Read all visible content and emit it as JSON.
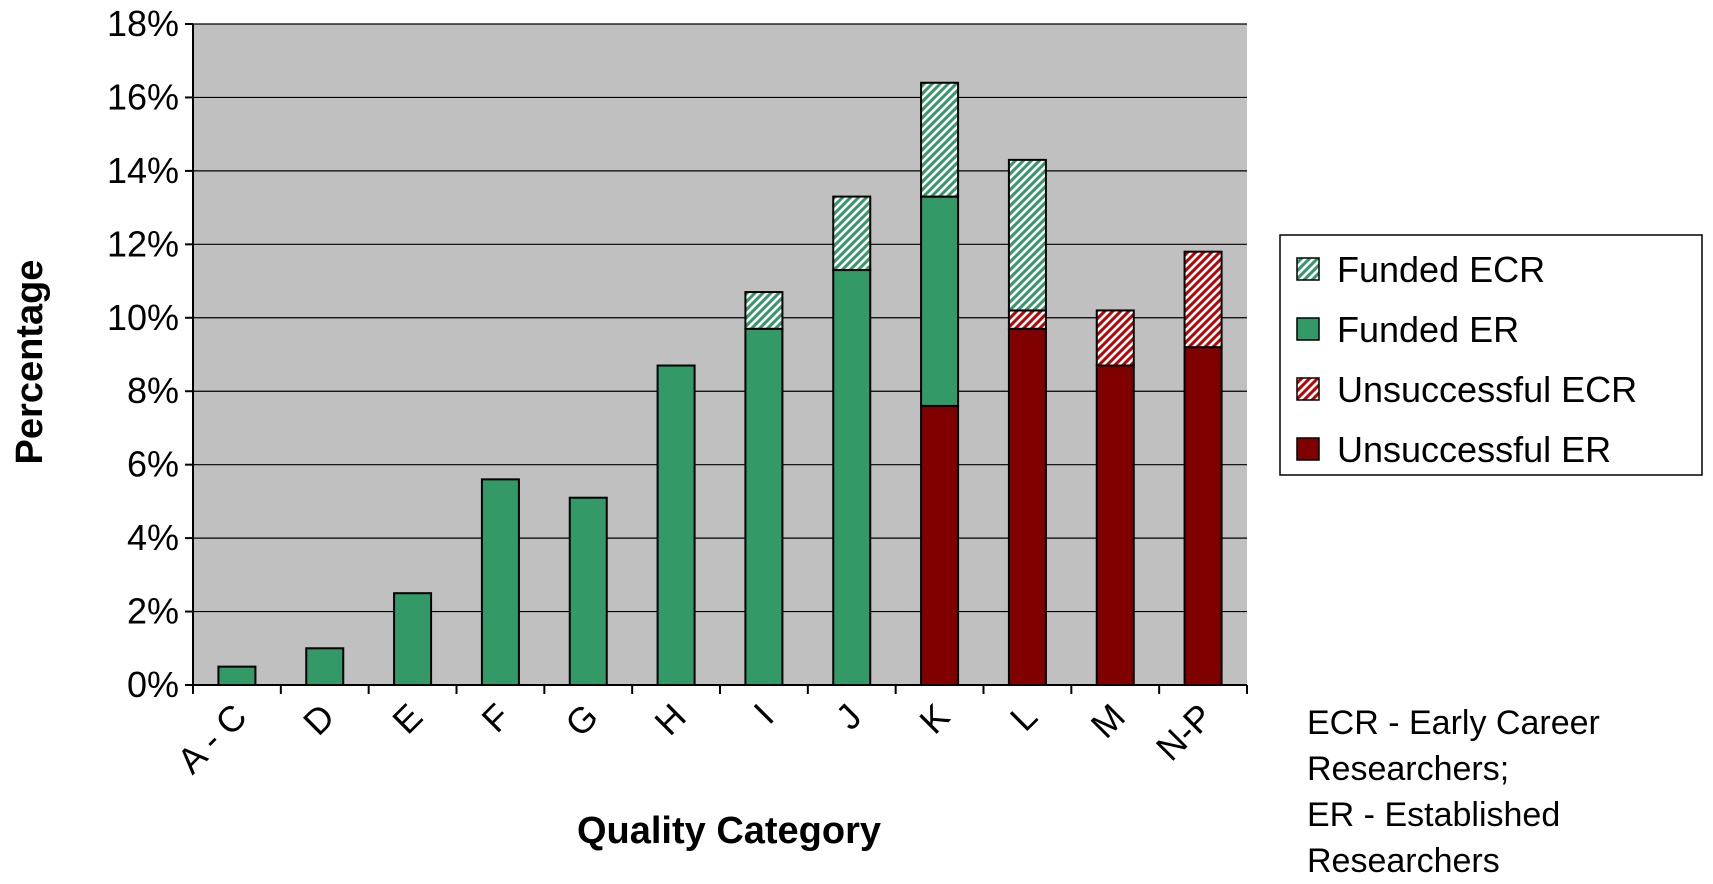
{
  "chart_data": {
    "type": "bar",
    "stacked": true,
    "categories": [
      "A - C",
      "D",
      "E",
      "F",
      "G",
      "H",
      "I",
      "J",
      "K",
      "L",
      "M",
      "N-P"
    ],
    "series": [
      {
        "name": "Unsuccessful ER",
        "color": "#800000",
        "pattern": "solid",
        "values": [
          0,
          0,
          0,
          0,
          0,
          0,
          0,
          0,
          7.6,
          9.7,
          8.7,
          9.2
        ]
      },
      {
        "name": "Unsuccessful ECR",
        "color": "#c00000",
        "pattern": "hatched",
        "values": [
          0,
          0,
          0,
          0,
          0,
          0,
          0,
          0,
          0,
          0.5,
          1.5,
          2.6
        ]
      },
      {
        "name": "Funded ER",
        "color": "#339966",
        "pattern": "solid",
        "values": [
          0.5,
          1.0,
          2.5,
          5.6,
          5.1,
          8.7,
          9.7,
          11.3,
          5.7,
          0,
          0,
          0
        ]
      },
      {
        "name": "Funded ECR",
        "color": "#339966",
        "pattern": "hatched",
        "values": [
          0,
          0,
          0,
          0,
          0,
          0,
          1.0,
          2.0,
          3.1,
          4.1,
          0,
          0
        ]
      }
    ],
    "legend_order": [
      "Funded ECR",
      "Funded ER",
      "Unsuccessful ECR",
      "Unsuccessful ER"
    ],
    "xlabel": "Quality Category",
    "ylabel": "Percentage",
    "ylim": [
      0,
      18
    ],
    "yticks": [
      0,
      2,
      4,
      6,
      8,
      10,
      12,
      14,
      16,
      18
    ],
    "ytick_format": "%",
    "grid": true,
    "plot_background": "#c0c0c0",
    "legend_position": "right",
    "notes": [
      "ECR - Early Career",
      "Researchers;",
      "ER - Established",
      "Researchers"
    ]
  }
}
